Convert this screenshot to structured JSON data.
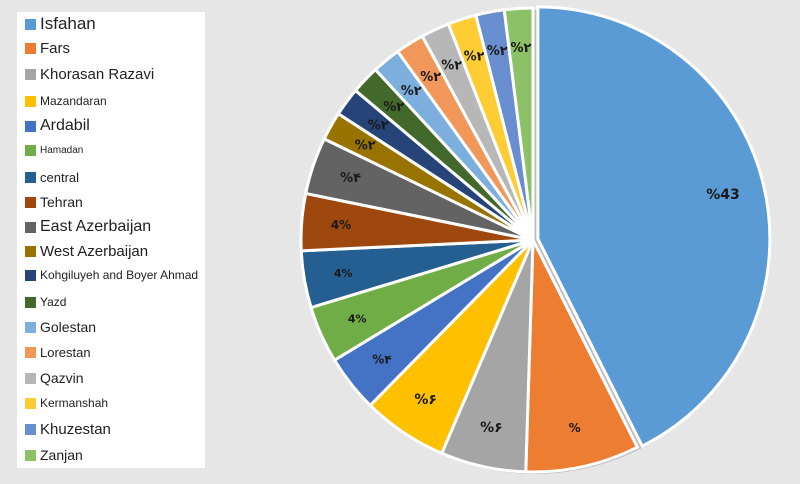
{
  "chart_data": {
    "type": "pie",
    "title": "",
    "legend_position": "left",
    "slices": [
      {
        "name": "Isfahan",
        "value": 43,
        "label": "%43",
        "color": "#5b9bd5"
      },
      {
        "name": "Fars",
        "value": 8,
        "label": "%",
        "color": "#ed7d31"
      },
      {
        "name": "Khorasan Razavi",
        "value": 6,
        "label": "%۶",
        "color": "#a5a5a5"
      },
      {
        "name": "Mazandaran",
        "value": 6,
        "label": "%۶",
        "color": "#ffc000"
      },
      {
        "name": "Ardabil",
        "value": 4,
        "label": "%۴",
        "color": "#4472c4"
      },
      {
        "name": "Hamadan",
        "value": 4,
        "label": "4%",
        "color": "#70ad47"
      },
      {
        "name": "central",
        "value": 4,
        "label": "4%",
        "color": "#255e91"
      },
      {
        "name": "Tehran",
        "value": 4,
        "label": "4%",
        "color": "#9e480e"
      },
      {
        "name": "East Azerbaijan",
        "value": 4,
        "label": "%۴",
        "color": "#636363"
      },
      {
        "name": "West Azerbaijan",
        "value": 2,
        "label": "%۲",
        "color": "#997300"
      },
      {
        "name": "Kohgiluyeh and Boyer Ahmad",
        "value": 2,
        "label": "%۲",
        "color": "#264478"
      },
      {
        "name": "Yazd",
        "value": 2,
        "label": "%۲",
        "color": "#43682b"
      },
      {
        "name": "Golestan",
        "value": 2,
        "label": "%۲",
        "color": "#7cafdd"
      },
      {
        "name": "Lorestan",
        "value": 2,
        "label": "%۲",
        "color": "#f1975a"
      },
      {
        "name": "Qazvin",
        "value": 2,
        "label": "%۲",
        "color": "#b7b7b7"
      },
      {
        "name": "Kermanshah",
        "value": 2,
        "label": "%۲",
        "color": "#ffcd33"
      },
      {
        "name": "Khuzestan",
        "value": 2,
        "label": "%۲",
        "color": "#698ed0"
      },
      {
        "name": "Zanjan",
        "value": 2,
        "label": "%۲",
        "color": "#8cc168"
      }
    ]
  }
}
